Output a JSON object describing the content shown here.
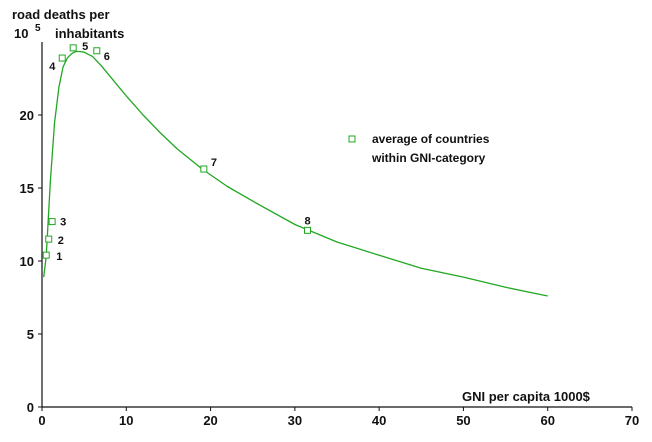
{
  "chart_data": {
    "type": "scatter",
    "ylabel_line1": "road deaths per",
    "ylabel_base": "10",
    "ylabel_exp": "5",
    "ylabel_line2": "inhabitants",
    "xlabel": "GNI per capita 1000$",
    "xlim": [
      0,
      70
    ],
    "ylim": [
      0,
      25
    ],
    "x_ticks": [
      0,
      10,
      20,
      30,
      40,
      50,
      60,
      70
    ],
    "y_ticks": [
      0,
      5,
      10,
      15,
      20
    ],
    "grid": false,
    "legend": {
      "position": "right",
      "line1": "average of countries",
      "line2": "within GNI-category"
    },
    "points": [
      {
        "label": "1",
        "x": 0.5,
        "y": 10.4
      },
      {
        "label": "2",
        "x": 0.8,
        "y": 11.5
      },
      {
        "label": "3",
        "x": 1.2,
        "y": 12.7
      },
      {
        "label": "4",
        "x": 2.4,
        "y": 23.9
      },
      {
        "label": "5",
        "x": 3.7,
        "y": 24.6
      },
      {
        "label": "6",
        "x": 6.5,
        "y": 24.4
      },
      {
        "label": "7",
        "x": 19.2,
        "y": 16.3
      },
      {
        "label": "8",
        "x": 31.5,
        "y": 12.1
      }
    ],
    "curve": {
      "x": [
        0.2,
        0.5,
        1,
        1.5,
        2,
        2.5,
        3,
        3.5,
        4,
        4.5,
        5,
        6,
        7,
        8,
        10,
        12,
        14,
        16,
        19,
        22,
        25,
        30,
        35,
        40,
        45,
        50,
        55,
        60
      ],
      "y": [
        8.9,
        10.3,
        15.5,
        19.5,
        21.9,
        23.3,
        23.9,
        24.2,
        24.35,
        24.35,
        24.3,
        24.0,
        23.4,
        22.7,
        21.3,
        20.0,
        18.8,
        17.7,
        16.3,
        15.1,
        14.1,
        12.5,
        11.3,
        10.4,
        9.5,
        8.9,
        8.2,
        7.6
      ]
    },
    "colors": {
      "series": "#22a722",
      "axis": "#111111",
      "text": "#111111"
    }
  }
}
